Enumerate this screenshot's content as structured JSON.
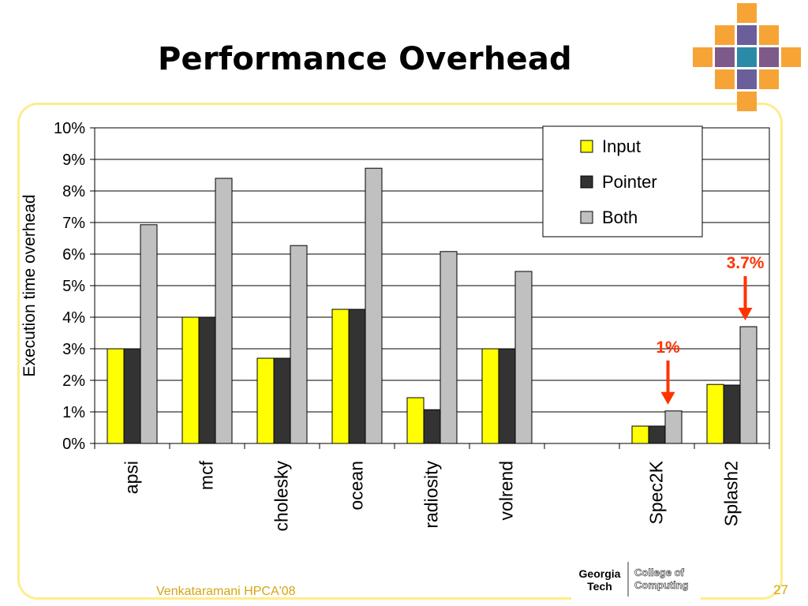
{
  "slide": {
    "title": "Performance Overhead",
    "footer_author": "Venkataramani HPCA'08",
    "page_number": "27"
  },
  "logo": {
    "left_line1": "Georgia",
    "left_line2": "Tech",
    "right_line1": "College of",
    "right_line2": "Computing"
  },
  "colors": {
    "input": "#ffff00",
    "pointer": "#333333",
    "both": "#c0c0c0",
    "annotation": "#ff3300",
    "frame": "#ffec8c",
    "deco_tile": "#f7a437"
  },
  "chart_data": {
    "type": "bar",
    "title": "",
    "xlabel": "",
    "ylabel": "Execution time overhead",
    "ylim": [
      0,
      10
    ],
    "yticks": [
      "0%",
      "1%",
      "2%",
      "3%",
      "4%",
      "5%",
      "6%",
      "7%",
      "8%",
      "9%",
      "10%"
    ],
    "categories": [
      "apsi",
      "mcf",
      "cholesky",
      "ocean",
      "radiosity",
      "volrend",
      "",
      "Spec2K",
      "Splash2"
    ],
    "series": [
      {
        "name": "Input",
        "values": [
          3.0,
          4.0,
          2.7,
          4.25,
          1.45,
          3.0,
          null,
          0.55,
          1.87
        ]
      },
      {
        "name": "Pointer",
        "values": [
          3.0,
          4.0,
          2.7,
          4.25,
          1.07,
          3.0,
          null,
          0.55,
          1.85
        ]
      },
      {
        "name": "Both",
        "values": [
          6.93,
          8.4,
          6.27,
          8.72,
          6.08,
          5.45,
          null,
          1.03,
          3.7
        ]
      }
    ],
    "legend_position": "top-right",
    "grid": true,
    "annotations": [
      {
        "text": "1%",
        "category": "Spec2K",
        "series": "Both"
      },
      {
        "text": "3.7%",
        "category": "Splash2",
        "series": "Both"
      }
    ]
  }
}
